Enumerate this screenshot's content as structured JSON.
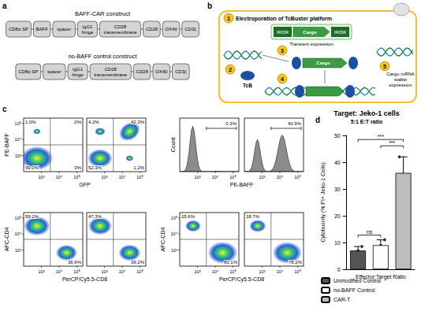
{
  "panel_a": {
    "label": "a",
    "constructs": [
      {
        "title": "BAFF-CAR construct",
        "domains": [
          "CD8α SP",
          "BAFF",
          "spacer",
          "IgG1 hinge",
          "CD28 transmembrane",
          "CD28",
          "OX40",
          "CD3ζ"
        ]
      },
      {
        "title": "no-BAFF control construct",
        "domains": [
          "CD8α SP",
          "spacer",
          "IgG1 hinge",
          "CD28 transmembrane",
          "CD28",
          "OX40",
          "CD3ζ"
        ]
      }
    ]
  },
  "panel_b": {
    "label": "b",
    "steps": [
      "1",
      "2",
      "3",
      "4",
      "5"
    ],
    "step_1_text": "Electroporation of TcBuster platform",
    "ir_dr": "IR/DR",
    "cargo": "Cargo",
    "transient": "Transient expression",
    "transposase": "TcB",
    "stable": "Cargo mRNA stable expression"
  },
  "panel_c": {
    "label": "c",
    "ticks": [
      "10³",
      "10⁴",
      "10⁵"
    ],
    "groups": [
      {
        "kind": "dot",
        "x_title": "GFP",
        "y_title": "PE-BAFF",
        "plots": [
          {
            "upper_left": "1.0%",
            "upper_right": "0%",
            "lower_left": "99.0%",
            "lower_right": "0%"
          },
          {
            "upper_left": "4.2%",
            "upper_right": "42.3%",
            "lower_left": "52.3%",
            "lower_right": "1.2%"
          }
        ]
      },
      {
        "kind": "histogram",
        "x_title": "PE-BAFF",
        "y_title": "Count",
        "plots": [
          {
            "gate": "0.3%"
          },
          {
            "gate": "40.9%"
          }
        ]
      },
      {
        "kind": "dot",
        "x_title": "PerCP/Cy5.5-CD8",
        "y_title": "APC-CD4",
        "plots": [
          {
            "upper_left": "59.2%",
            "lower_right": "36.6%"
          },
          {
            "upper_left": "47.3%",
            "lower_right": "39.2%"
          }
        ]
      },
      {
        "kind": "dot",
        "x_title": "PerCP/Cy5.5-CD8",
        "y_title": "APC-CD4",
        "plots": [
          {
            "upper_left": "15.6%",
            "lower_right": "80.1%"
          },
          {
            "upper_left": "18.7%",
            "lower_right": "78.2%"
          }
        ]
      }
    ]
  },
  "chart_data": {
    "label": "d",
    "type": "bar",
    "title": "Target: Jeko-1 cells",
    "subtitle": "5:1 E:T ratio",
    "x_label": "Effector:Target Ratio",
    "y_label": "Cytotoxicity (% PI+ Jeko-1 Cells)",
    "ylim": [
      0,
      50
    ],
    "yticks": [
      0,
      10,
      20,
      30,
      40,
      50
    ],
    "tick_labels": "y",
    "legend": "bottom",
    "series": [
      {
        "name": "Unmodified Control",
        "color": "#555555",
        "values": [
          7
        ],
        "errors": [
          1.5
        ],
        "points": [
          5.5,
          7,
          8.5
        ]
      },
      {
        "name": "no-BAFF Control",
        "color": "#ffffff",
        "values": [
          9
        ],
        "errors": [
          2
        ],
        "points": [
          7,
          9,
          11
        ]
      },
      {
        "name": "CAR-T",
        "color": "#bdbdbd",
        "values": [
          36
        ],
        "errors": [
          6
        ],
        "points": [
          42,
          35,
          30
        ]
      }
    ],
    "comparisons": [
      {
        "groups": [
          "Unmodified Control",
          "no-BAFF Control"
        ],
        "label": "ns"
      },
      {
        "groups": [
          "no-BAFF Control",
          "CAR-T"
        ],
        "label": "***"
      },
      {
        "groups": [
          "Unmodified Control",
          "CAR-T"
        ],
        "label": "***"
      }
    ]
  }
}
